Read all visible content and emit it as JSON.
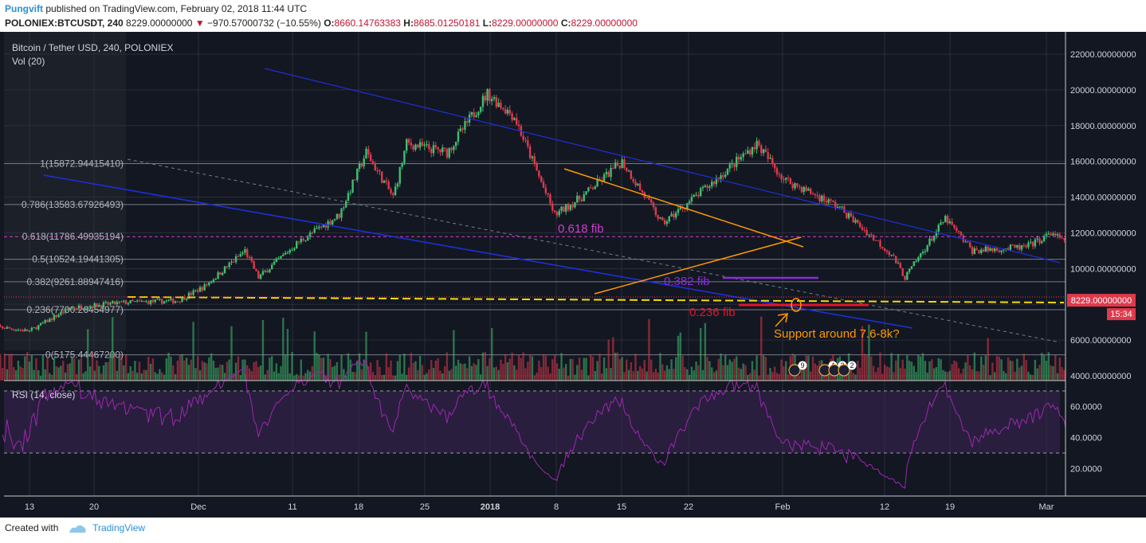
{
  "header": {
    "user": "Pungvift",
    "published_text": "published on TradingView.com, February 02, 2018 11:44 UTC"
  },
  "ohlc": {
    "symbol": "POLONIEX:BTCUSDT, 240",
    "last": "8229.00000000",
    "change": "−970.57000732 (−10.55%)",
    "o_label": "O:",
    "o": "8660.14763383",
    "h_label": "H:",
    "h": "8685.01250181",
    "l_label": "L:",
    "l": "8229.00000000",
    "c_label": "C:",
    "c": "8229.00000000"
  },
  "legend": {
    "title": "Bitcoin / Tether USD, 240, POLONIEX",
    "vol": "Vol (20)",
    "rsi": "RSI (14, close)"
  },
  "footer": {
    "created_with": "Created with",
    "brand": "TradingView"
  },
  "colors": {
    "background": "#131722",
    "up": "#3fbf6e",
    "down": "#e0394b",
    "channel": "#1e2fd8",
    "triangle": "#ff9800",
    "fib_pink": "#d43ad1",
    "fib_purple": "#8a2be2",
    "fib_red": "#e0162b",
    "support": "#f5d90a",
    "rsi_line": "#9c27b0"
  },
  "chart_data": {
    "type": "candlestick",
    "price_axis": {
      "ylim": [
        3000,
        23000
      ],
      "ticks": [
        "22000.00000000",
        "20000.00000000",
        "18000.00000000",
        "16000.00000000",
        "14000.00000000",
        "12000.00000000",
        "10000.00000000",
        "8229.00000000",
        "6000.00000000",
        "4000.00000000"
      ],
      "last_price_label": "8229.00000000",
      "countdown_label": "15:34"
    },
    "time_axis": {
      "labels": [
        "13",
        "20",
        "Dec",
        "11",
        "18",
        "25",
        "2018",
        "8",
        "15",
        "22",
        "Feb",
        "12",
        "19",
        "Mar"
      ]
    },
    "rsi_axis": {
      "ticks": [
        "60.0000",
        "40.0000",
        "20.0000"
      ],
      "upper": 70,
      "lower": 30
    },
    "fib_levels": [
      {
        "label": "1(15872.94415410)",
        "price": 15872.94
      },
      {
        "label": "0.786(13583.67926493)",
        "price": 13583.68
      },
      {
        "label": "0.618(11786.49935194)",
        "price": 11786.5
      },
      {
        "label": "0.5(10524.19441305)",
        "price": 10524.19
      },
      {
        "label": "0.382(9261.88947416)",
        "price": 9261.89
      },
      {
        "label": "0.236(7700.26454977)",
        "price": 7700.26
      },
      {
        "label": "0(5175.44467200)",
        "price": 5175.44
      }
    ],
    "price_path": [
      {
        "date": "2017-11-10",
        "price": 6800
      },
      {
        "date": "2017-11-13",
        "price": 6500
      },
      {
        "date": "2017-11-16",
        "price": 7800
      },
      {
        "date": "2017-11-20",
        "price": 8100
      },
      {
        "date": "2017-11-24",
        "price": 8200
      },
      {
        "date": "2017-11-26",
        "price": 9000
      },
      {
        "date": "2017-11-29",
        "price": 11000
      },
      {
        "date": "2017-11-30",
        "price": 9500
      },
      {
        "date": "2017-12-03",
        "price": 11500
      },
      {
        "date": "2017-12-06",
        "price": 13000
      },
      {
        "date": "2017-12-08",
        "price": 16500
      },
      {
        "date": "2017-12-10",
        "price": 14000
      },
      {
        "date": "2017-12-11",
        "price": 17000
      },
      {
        "date": "2017-12-14",
        "price": 16500
      },
      {
        "date": "2017-12-17",
        "price": 19800
      },
      {
        "date": "2017-12-19",
        "price": 18500
      },
      {
        "date": "2017-12-22",
        "price": 13000
      },
      {
        "date": "2017-12-24",
        "price": 14000
      },
      {
        "date": "2017-12-27",
        "price": 16000
      },
      {
        "date": "2017-12-30",
        "price": 12500
      },
      {
        "date": "2018-01-03",
        "price": 15000
      },
      {
        "date": "2018-01-06",
        "price": 17000
      },
      {
        "date": "2018-01-08",
        "price": 15000
      },
      {
        "date": "2018-01-12",
        "price": 13500
      },
      {
        "date": "2018-01-16",
        "price": 10800
      },
      {
        "date": "2018-01-17",
        "price": 9500
      },
      {
        "date": "2018-01-20",
        "price": 12800
      },
      {
        "date": "2018-01-22",
        "price": 11000
      },
      {
        "date": "2018-01-26",
        "price": 11200
      },
      {
        "date": "2018-01-28",
        "price": 12000
      },
      {
        "date": "2018-01-31",
        "price": 10000
      },
      {
        "date": "2018-02-02",
        "price": 8229
      }
    ],
    "annotations": {
      "fib_0618": "0.618 fib",
      "fib_0382": "0.382 fib",
      "fib_0236": "0.236 fib",
      "support": "Support around 7.6-8k?"
    },
    "event_badges": [
      "9",
      "4",
      "3",
      "2"
    ]
  }
}
